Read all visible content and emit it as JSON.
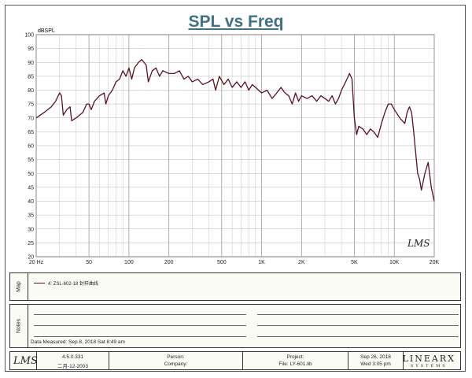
{
  "chart_data": {
    "type": "line",
    "title": "SPL vs Freq",
    "ylabel": "dBSPL",
    "xscale": "log",
    "xlim": [
      20,
      20000
    ],
    "ylim": [
      20,
      100
    ],
    "grid": true,
    "y_ticks": [
      20,
      25,
      30,
      35,
      40,
      45,
      50,
      55,
      60,
      65,
      70,
      75,
      80,
      85,
      90,
      95,
      100
    ],
    "x_tick_labels": [
      {
        "value": 20,
        "label": "20 Hz"
      },
      {
        "value": 50,
        "label": "50"
      },
      {
        "value": 100,
        "label": "100"
      },
      {
        "value": 200,
        "label": "200"
      },
      {
        "value": 500,
        "label": "500"
      },
      {
        "value": 1000,
        "label": "1K"
      },
      {
        "value": 2000,
        "label": "2K"
      },
      {
        "value": 5000,
        "label": "5K"
      },
      {
        "value": 10000,
        "label": "10K"
      },
      {
        "value": 20000,
        "label": "20K"
      }
    ],
    "series": [
      {
        "name": "4: ZSL-602-18 封样曲线",
        "color": "#5a1020",
        "points": [
          [
            20,
            70
          ],
          [
            23,
            72
          ],
          [
            26,
            74
          ],
          [
            28,
            76
          ],
          [
            30,
            79
          ],
          [
            31,
            78
          ],
          [
            32,
            71
          ],
          [
            34,
            73
          ],
          [
            36,
            74
          ],
          [
            37,
            69
          ],
          [
            40,
            70
          ],
          [
            45,
            72
          ],
          [
            48,
            75
          ],
          [
            50,
            75
          ],
          [
            52,
            73
          ],
          [
            55,
            76
          ],
          [
            60,
            78
          ],
          [
            65,
            79
          ],
          [
            67,
            75
          ],
          [
            70,
            78
          ],
          [
            75,
            80
          ],
          [
            80,
            83
          ],
          [
            85,
            84
          ],
          [
            90,
            87
          ],
          [
            95,
            85
          ],
          [
            100,
            88
          ],
          [
            105,
            84
          ],
          [
            110,
            88
          ],
          [
            118,
            90
          ],
          [
            125,
            91
          ],
          [
            130,
            90
          ],
          [
            135,
            89
          ],
          [
            140,
            83
          ],
          [
            150,
            87
          ],
          [
            160,
            88
          ],
          [
            170,
            85
          ],
          [
            180,
            87
          ],
          [
            200,
            86
          ],
          [
            220,
            86
          ],
          [
            240,
            87
          ],
          [
            260,
            84
          ],
          [
            280,
            85
          ],
          [
            300,
            83
          ],
          [
            330,
            84
          ],
          [
            360,
            82
          ],
          [
            400,
            83
          ],
          [
            430,
            84
          ],
          [
            450,
            80
          ],
          [
            480,
            85
          ],
          [
            520,
            82
          ],
          [
            560,
            84
          ],
          [
            600,
            81
          ],
          [
            650,
            83
          ],
          [
            700,
            81
          ],
          [
            750,
            83
          ],
          [
            800,
            80
          ],
          [
            850,
            82
          ],
          [
            900,
            81
          ],
          [
            1000,
            79
          ],
          [
            1100,
            80
          ],
          [
            1200,
            77
          ],
          [
            1300,
            79
          ],
          [
            1400,
            81
          ],
          [
            1500,
            79
          ],
          [
            1600,
            78
          ],
          [
            1700,
            75
          ],
          [
            1800,
            79
          ],
          [
            1900,
            76
          ],
          [
            2000,
            78
          ],
          [
            2200,
            77
          ],
          [
            2400,
            78
          ],
          [
            2600,
            76
          ],
          [
            2800,
            78
          ],
          [
            3000,
            77
          ],
          [
            3200,
            76
          ],
          [
            3400,
            78
          ],
          [
            3600,
            75
          ],
          [
            3800,
            77
          ],
          [
            4000,
            80
          ],
          [
            4200,
            82
          ],
          [
            4400,
            84
          ],
          [
            4600,
            86
          ],
          [
            4800,
            84
          ],
          [
            5000,
            70
          ],
          [
            5200,
            64
          ],
          [
            5400,
            67
          ],
          [
            5800,
            66
          ],
          [
            6200,
            64
          ],
          [
            6600,
            66
          ],
          [
            7000,
            65
          ],
          [
            7500,
            63
          ],
          [
            8000,
            68
          ],
          [
            8500,
            72
          ],
          [
            9000,
            75
          ],
          [
            9500,
            75
          ],
          [
            10000,
            73
          ],
          [
            11000,
            70
          ],
          [
            12000,
            68
          ],
          [
            12500,
            72
          ],
          [
            13000,
            74
          ],
          [
            13500,
            72
          ],
          [
            14000,
            65
          ],
          [
            15000,
            50
          ],
          [
            15500,
            48
          ],
          [
            16000,
            44
          ],
          [
            17000,
            50
          ],
          [
            18000,
            54
          ],
          [
            19000,
            45
          ],
          [
            20000,
            40
          ]
        ]
      }
    ]
  },
  "map": {
    "label": "Map",
    "legend": "4: ZSL-602-18 封样曲线"
  },
  "notes": {
    "label": "Notes",
    "date_measured": "Data Measured: Sep 8, 2018 Sat 8:49 am"
  },
  "footer": {
    "logo": "LMS",
    "version": "4.5.0.331",
    "build_date": "二月-12-2003",
    "person_label": "Person:",
    "company_label": "Company:",
    "project_label": "Project:",
    "file_label": "File: LY-601.lib",
    "date": "Sep 26, 2018",
    "time": "Wed 3:05 pm",
    "brand": "LINEARX",
    "brand_sub": "SYSTEMS"
  },
  "watermark": "LMS"
}
